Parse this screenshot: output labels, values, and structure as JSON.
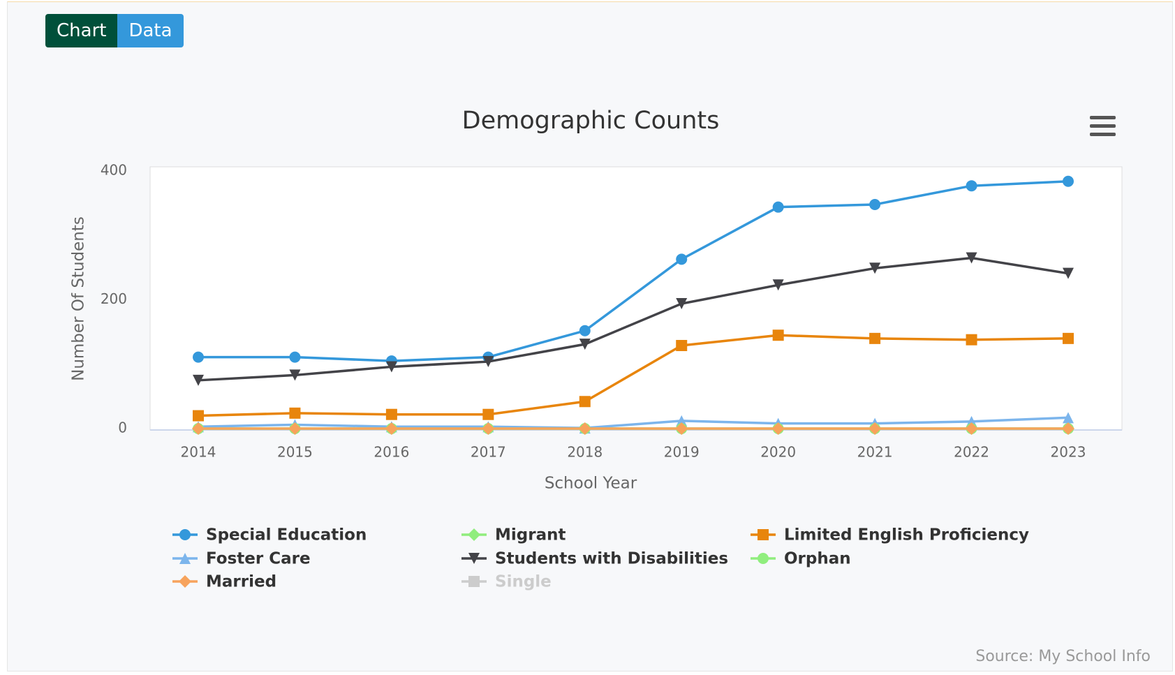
{
  "buttons": [
    "Chart",
    "Data"
  ],
  "source": "Source: My School Info",
  "chart_data": {
    "type": "line",
    "title": "Demographic Counts",
    "x_label": "School Year",
    "y_label": "Number Of Students",
    "categories": [
      "2014",
      "2015",
      "2016",
      "2017",
      "2018",
      "2019",
      "2020",
      "2021",
      "2022",
      "2023"
    ],
    "ylim": [
      0,
      400
    ],
    "yticks": [
      0,
      200,
      400
    ],
    "grid": false,
    "legend": "bottom",
    "series": [
      {
        "name": "Special Education",
        "color": "#3498db",
        "marker": "circle",
        "values": [
          111,
          111,
          105,
          111,
          152,
          263,
          344,
          348,
          377,
          384
        ]
      },
      {
        "name": "Migrant",
        "color": "#90ed7d",
        "marker": "diamond",
        "values": [
          0,
          0,
          0,
          0,
          0,
          0,
          0,
          0,
          0,
          0
        ]
      },
      {
        "name": "Limited English Proficiency",
        "color": "#e8850c",
        "marker": "square",
        "values": [
          20,
          24,
          22,
          22,
          42,
          129,
          145,
          140,
          138,
          140
        ]
      },
      {
        "name": "Foster Care",
        "color": "#7cb5ec",
        "marker": "triangle",
        "values": [
          3,
          6,
          3,
          3,
          1,
          12,
          8,
          8,
          11,
          17
        ]
      },
      {
        "name": "Students with Disabilities",
        "color": "#434348",
        "marker": "triangle-down",
        "values": [
          75,
          83,
          96,
          104,
          131,
          194,
          223,
          249,
          265,
          241
        ]
      },
      {
        "name": "Orphan",
        "color": "#90ee7e",
        "marker": "circle",
        "values": [
          0,
          0,
          0,
          0,
          0,
          0,
          0,
          0,
          0,
          0
        ]
      },
      {
        "name": "Married",
        "color": "#f7a35c",
        "marker": "diamond",
        "values": [
          0,
          0,
          0,
          0,
          0,
          0,
          0,
          0,
          0,
          0
        ]
      },
      {
        "name": "Single",
        "color": "#cccccc",
        "marker": "square",
        "visible": false,
        "values": [
          null,
          null,
          null,
          null,
          null,
          null,
          null,
          null,
          null,
          null
        ]
      }
    ]
  }
}
